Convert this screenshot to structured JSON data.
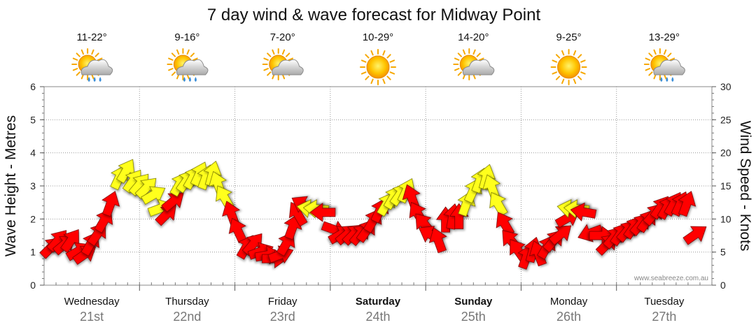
{
  "chart_data": {
    "type": "arrow-series",
    "title": "7 day wind & wave forecast for Midway Point",
    "ylabel_left": "Wave Height - Metres",
    "ylabel_right": "Wind Speed - Knots",
    "ylim_left": [
      0,
      6
    ],
    "ylim_right": [
      0,
      30
    ],
    "left_ticks": [
      "0",
      "1",
      "2",
      "3",
      "4",
      "5",
      "6"
    ],
    "right_ticks": [
      "0",
      "5",
      "10",
      "15",
      "20",
      "25",
      "30"
    ],
    "watermark": "www.seabreeze.com.au",
    "days": [
      {
        "name": "Wednesday",
        "date": "21st",
        "temp": "11-22°",
        "icon": "sun-cloud-rain-icon",
        "bold": false
      },
      {
        "name": "Thursday",
        "date": "22nd",
        "temp": "9-16°",
        "icon": "sun-cloud-rain-icon",
        "bold": false
      },
      {
        "name": "Friday",
        "date": "23rd",
        "temp": "7-20°",
        "icon": "sun-cloud-icon",
        "bold": false
      },
      {
        "name": "Saturday",
        "date": "24th",
        "temp": "10-29°",
        "icon": "sun-icon",
        "bold": true
      },
      {
        "name": "Sunday",
        "date": "25th",
        "temp": "14-20°",
        "icon": "sun-cloud-icon",
        "bold": true
      },
      {
        "name": "Monday",
        "date": "26th",
        "temp": "9-25°",
        "icon": "sun-icon",
        "bold": false
      },
      {
        "name": "Tuesday",
        "date": "27th",
        "temp": "13-29°",
        "icon": "sun-cloud-rain-icon",
        "bold": false
      }
    ],
    "wind_arrows": [
      {
        "t": 0.0,
        "knots": 5.5,
        "dir": 45,
        "color": "red"
      },
      {
        "t": 0.07,
        "knots": 6.5,
        "dir": 40,
        "color": "red"
      },
      {
        "t": 0.14,
        "knots": 6.0,
        "dir": 50,
        "color": "red"
      },
      {
        "t": 0.21,
        "knots": 6.5,
        "dir": 35,
        "color": "red"
      },
      {
        "t": 0.28,
        "knots": 5.0,
        "dir": 60,
        "color": "red"
      },
      {
        "t": 0.35,
        "knots": 4.5,
        "dir": 55,
        "color": "red"
      },
      {
        "t": 0.42,
        "knots": 6.0,
        "dir": 30,
        "color": "red"
      },
      {
        "t": 0.49,
        "knots": 7.5,
        "dir": 35,
        "color": "red"
      },
      {
        "t": 0.56,
        "knots": 9.5,
        "dir": 30,
        "color": "red"
      },
      {
        "t": 0.63,
        "knots": 12.0,
        "dir": 20,
        "color": "red"
      },
      {
        "t": 0.72,
        "knots": 16.0,
        "dir": 25,
        "color": "yellow"
      },
      {
        "t": 0.79,
        "knots": 17.0,
        "dir": 30,
        "color": "yellow"
      },
      {
        "t": 0.86,
        "knots": 15.5,
        "dir": 35,
        "color": "yellow"
      },
      {
        "t": 0.93,
        "knots": 15.0,
        "dir": 40,
        "color": "yellow"
      },
      {
        "t": 1.0,
        "knots": 14.5,
        "dir": 45,
        "color": "yellow"
      },
      {
        "t": 1.07,
        "knots": 13.5,
        "dir": 60,
        "color": "yellow"
      },
      {
        "t": 1.14,
        "knots": 11.5,
        "dir": 70,
        "color": "yellow"
      },
      {
        "t": 1.21,
        "knots": 10.5,
        "dir": 45,
        "color": "red"
      },
      {
        "t": 1.28,
        "knots": 12.5,
        "dir": 50,
        "color": "red"
      },
      {
        "t": 1.35,
        "knots": 15.0,
        "dir": 30,
        "color": "yellow"
      },
      {
        "t": 1.42,
        "knots": 15.5,
        "dir": 35,
        "color": "yellow"
      },
      {
        "t": 1.49,
        "knots": 16.0,
        "dir": 30,
        "color": "yellow"
      },
      {
        "t": 1.56,
        "knots": 16.5,
        "dir": 25,
        "color": "yellow"
      },
      {
        "t": 1.63,
        "knots": 16.0,
        "dir": 20,
        "color": "yellow"
      },
      {
        "t": 1.7,
        "knots": 16.5,
        "dir": 15,
        "color": "yellow"
      },
      {
        "t": 1.77,
        "knots": 15.0,
        "dir": -20,
        "color": "yellow"
      },
      {
        "t": 1.84,
        "knots": 13.0,
        "dir": -30,
        "color": "yellow"
      },
      {
        "t": 1.91,
        "knots": 10.5,
        "dir": -20,
        "color": "red"
      },
      {
        "t": 1.98,
        "knots": 8.0,
        "dir": -25,
        "color": "red"
      },
      {
        "t": 2.05,
        "knots": 5.5,
        "dir": 30,
        "color": "red"
      },
      {
        "t": 2.12,
        "knots": 6.0,
        "dir": 40,
        "color": "red"
      },
      {
        "t": 2.19,
        "knots": 5.0,
        "dir": 70,
        "color": "red"
      },
      {
        "t": 2.26,
        "knots": 4.5,
        "dir": 80,
        "color": "red"
      },
      {
        "t": 2.33,
        "knots": 4.0,
        "dir": 90,
        "color": "red"
      },
      {
        "t": 2.4,
        "knots": 4.5,
        "dir": 70,
        "color": "red"
      },
      {
        "t": 2.47,
        "knots": 6.0,
        "dir": 30,
        "color": "red"
      },
      {
        "t": 2.54,
        "knots": 8.5,
        "dir": 20,
        "color": "red"
      },
      {
        "t": 2.61,
        "knots": 10.5,
        "dir": -30,
        "color": "red"
      },
      {
        "t": 2.68,
        "knots": 12.0,
        "dir": -60,
        "color": "red"
      },
      {
        "t": 2.75,
        "knots": 11.5,
        "dir": -80,
        "color": "yellow"
      },
      {
        "t": 2.82,
        "knots": 11.5,
        "dir": -85,
        "color": "yellow"
      },
      {
        "t": 2.89,
        "knots": 11.0,
        "dir": -90,
        "color": "red"
      },
      {
        "t": 2.96,
        "knots": 8.5,
        "dir": 110,
        "color": "red"
      },
      {
        "t": 3.03,
        "knots": 7.5,
        "dir": 60,
        "color": "red"
      },
      {
        "t": 3.1,
        "knots": 7.5,
        "dir": 50,
        "color": "red"
      },
      {
        "t": 3.17,
        "knots": 7.5,
        "dir": 45,
        "color": "red"
      },
      {
        "t": 3.24,
        "knots": 7.5,
        "dir": 40,
        "color": "red"
      },
      {
        "t": 3.31,
        "knots": 8.0,
        "dir": 35,
        "color": "red"
      },
      {
        "t": 3.38,
        "knots": 9.5,
        "dir": 30,
        "color": "red"
      },
      {
        "t": 3.45,
        "knots": 11.0,
        "dir": 25,
        "color": "red"
      },
      {
        "t": 3.52,
        "knots": 12.0,
        "dir": 30,
        "color": "yellow"
      },
      {
        "t": 3.59,
        "knots": 13.0,
        "dir": 30,
        "color": "yellow"
      },
      {
        "t": 3.66,
        "knots": 13.5,
        "dir": 35,
        "color": "yellow"
      },
      {
        "t": 3.73,
        "knots": 14.0,
        "dir": 25,
        "color": "yellow"
      },
      {
        "t": 3.8,
        "knots": 13.0,
        "dir": -20,
        "color": "red"
      },
      {
        "t": 3.87,
        "knots": 10.5,
        "dir": -30,
        "color": "red"
      },
      {
        "t": 3.94,
        "knots": 9.0,
        "dir": -40,
        "color": "red"
      },
      {
        "t": 4.01,
        "knots": 7.5,
        "dir": -60,
        "color": "red"
      },
      {
        "t": 4.08,
        "knots": 6.5,
        "dir": -20,
        "color": "red"
      },
      {
        "t": 4.15,
        "knots": 9.5,
        "dir": 0,
        "color": "red"
      },
      {
        "t": 4.22,
        "knots": 10.0,
        "dir": 10,
        "color": "red"
      },
      {
        "t": 4.29,
        "knots": 10.0,
        "dir": 0,
        "color": "red"
      },
      {
        "t": 4.36,
        "knots": 12.0,
        "dir": 20,
        "color": "yellow"
      },
      {
        "t": 4.43,
        "knots": 14.0,
        "dir": 25,
        "color": "yellow"
      },
      {
        "t": 4.5,
        "knots": 15.5,
        "dir": 20,
        "color": "yellow"
      },
      {
        "t": 4.57,
        "knots": 16.0,
        "dir": 15,
        "color": "yellow"
      },
      {
        "t": 4.64,
        "knots": 14.5,
        "dir": -20,
        "color": "yellow"
      },
      {
        "t": 4.71,
        "knots": 12.0,
        "dir": -30,
        "color": "yellow"
      },
      {
        "t": 4.78,
        "knots": 9.0,
        "dir": -30,
        "color": "red"
      },
      {
        "t": 4.85,
        "knots": 6.5,
        "dir": -40,
        "color": "red"
      },
      {
        "t": 4.92,
        "knots": 5.0,
        "dir": -35,
        "color": "red"
      },
      {
        "t": 4.99,
        "knots": 4.0,
        "dir": 20,
        "color": "red"
      },
      {
        "t": 5.06,
        "knots": 5.0,
        "dir": 15,
        "color": "red"
      },
      {
        "t": 5.13,
        "knots": 4.5,
        "dir": -20,
        "color": "red"
      },
      {
        "t": 5.2,
        "knots": 5.5,
        "dir": 30,
        "color": "red"
      },
      {
        "t": 5.27,
        "knots": 6.5,
        "dir": 40,
        "color": "red"
      },
      {
        "t": 5.34,
        "knots": 7.5,
        "dir": 50,
        "color": "red"
      },
      {
        "t": 5.41,
        "knots": 10.0,
        "dir": 60,
        "color": "red"
      },
      {
        "t": 5.48,
        "knots": 11.5,
        "dir": -80,
        "color": "yellow"
      },
      {
        "t": 5.55,
        "knots": 11.5,
        "dir": -85,
        "color": "yellow"
      },
      {
        "t": 5.62,
        "knots": 11.0,
        "dir": -80,
        "color": "red"
      },
      {
        "t": 5.69,
        "knots": 8.0,
        "dir": -110,
        "color": "red"
      },
      {
        "t": 5.76,
        "knots": 7.5,
        "dir": 90,
        "color": "red"
      },
      {
        "t": 5.83,
        "knots": 6.0,
        "dir": 45,
        "color": "red"
      },
      {
        "t": 5.9,
        "knots": 7.0,
        "dir": 40,
        "color": "red"
      },
      {
        "t": 5.97,
        "knots": 7.5,
        "dir": 35,
        "color": "red"
      },
      {
        "t": 6.04,
        "knots": 8.0,
        "dir": 40,
        "color": "red"
      },
      {
        "t": 6.11,
        "knots": 8.5,
        "dir": 35,
        "color": "red"
      },
      {
        "t": 6.18,
        "knots": 9.0,
        "dir": 40,
        "color": "red"
      },
      {
        "t": 6.25,
        "knots": 9.5,
        "dir": 35,
        "color": "red"
      },
      {
        "t": 6.32,
        "knots": 10.5,
        "dir": 40,
        "color": "red"
      },
      {
        "t": 6.39,
        "knots": 11.5,
        "dir": 35,
        "color": "red"
      },
      {
        "t": 6.46,
        "knots": 11.5,
        "dir": 30,
        "color": "red"
      },
      {
        "t": 6.53,
        "knots": 12.0,
        "dir": 30,
        "color": "red"
      },
      {
        "t": 6.6,
        "knots": 12.0,
        "dir": 25,
        "color": "red"
      },
      {
        "t": 6.67,
        "knots": 12.0,
        "dir": 20,
        "color": "red"
      },
      {
        "t": 6.75,
        "knots": 7.5,
        "dir": 55,
        "color": "red"
      }
    ]
  }
}
